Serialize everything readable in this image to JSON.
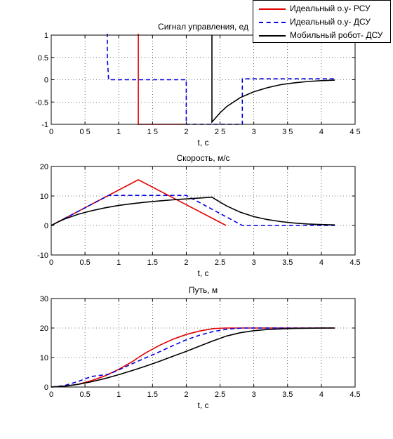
{
  "legend": {
    "items": [
      {
        "label": "Идеальный о.у- РСУ",
        "color": "#e00000",
        "style": "solid"
      },
      {
        "label": "Идеальный о.у- ДСУ",
        "color": "#0000e0",
        "style": "dashed"
      },
      {
        "label": "Мобильный робот- ДСУ",
        "color": "#000000",
        "style": "solid"
      }
    ]
  },
  "chart_data": [
    {
      "type": "line",
      "title": "Сигнал управления, ед",
      "xlabel": "t, c",
      "ylabel": "",
      "xlim": [
        0,
        4.5
      ],
      "ylim": [
        -1,
        1
      ],
      "xticks": [
        0,
        0.5,
        1,
        1.5,
        2,
        2.5,
        3,
        3.5,
        4,
        4.5
      ],
      "xtick_labels": [
        "0",
        "0 5",
        "1",
        "1 5",
        "2",
        "2 5",
        "3",
        "3 5",
        "4",
        "4 5"
      ],
      "yticks": [
        -1,
        -0.5,
        0,
        0.5,
        1
      ],
      "ytick_labels": [
        "-1",
        "-0.5",
        "0",
        "0.5",
        "1"
      ],
      "grid": true,
      "series": [
        {
          "name": "Идеальный о.у- РСУ",
          "color": "#e00000",
          "dash": "",
          "x": [
            1.29,
            1.29,
            2.0,
            2.0
          ],
          "y": [
            1.05,
            -1,
            -1,
            -1
          ]
        },
        {
          "name": "Идеальный о.у- ДСУ",
          "color": "#0000e0",
          "dash": "6,4",
          "x": [
            0.83,
            0.83,
            0.85,
            2.0,
            2.0,
            2.83,
            2.83,
            4.2
          ],
          "y": [
            1.05,
            0.5,
            0,
            0,
            -1,
            -1,
            0.02,
            0.02
          ]
        },
        {
          "name": "Мобильный робот- ДСУ",
          "color": "#000000",
          "dash": "",
          "x": [
            2.38,
            2.38,
            2.42,
            2.5,
            2.6,
            2.8,
            3.0,
            3.2,
            3.4,
            3.6,
            3.8,
            4.0,
            4.2
          ],
          "y": [
            1.0,
            -0.95,
            -0.88,
            -0.74,
            -0.6,
            -0.4,
            -0.27,
            -0.18,
            -0.11,
            -0.07,
            -0.04,
            -0.02,
            -0.01
          ]
        }
      ]
    },
    {
      "type": "line",
      "title": "Скорость, м/с",
      "xlabel": "t, c",
      "ylabel": "",
      "xlim": [
        0,
        4.5
      ],
      "ylim": [
        -10,
        20
      ],
      "xticks": [
        0,
        0.5,
        1,
        1.5,
        2,
        2.5,
        3,
        3.5,
        4,
        4.5
      ],
      "xtick_labels": [
        "0",
        "0.5",
        "1",
        "1.5",
        "2",
        "2.5",
        "3",
        "3.5",
        "4",
        "4.5"
      ],
      "yticks": [
        -10,
        0,
        10,
        20
      ],
      "ytick_labels": [
        "-10",
        "0",
        "10",
        "20"
      ],
      "grid": true,
      "series": [
        {
          "name": "Идеальный о.у- РСУ",
          "color": "#e00000",
          "dash": "",
          "x": [
            0,
            1.29,
            2.59
          ],
          "y": [
            0,
            15.5,
            0
          ]
        },
        {
          "name": "Идеальный о.у- ДСУ",
          "color": "#0000e0",
          "dash": "6,4",
          "x": [
            0,
            0.85,
            2.0,
            2.83,
            4.2
          ],
          "y": [
            0,
            10.2,
            10.2,
            0,
            0
          ]
        },
        {
          "name": "Мобильный робот- ДСУ",
          "color": "#000000",
          "dash": "",
          "x": [
            0,
            0.1,
            0.2,
            0.4,
            0.6,
            0.8,
            1.0,
            1.2,
            1.4,
            1.6,
            1.8,
            2.0,
            2.2,
            2.38,
            2.5,
            2.6,
            2.8,
            3.0,
            3.2,
            3.4,
            3.6,
            3.8,
            4.0,
            4.2
          ],
          "y": [
            0,
            1.2,
            2.2,
            3.8,
            5.0,
            6.0,
            6.8,
            7.4,
            7.9,
            8.3,
            8.7,
            9.0,
            9.3,
            9.6,
            7.9,
            6.6,
            4.5,
            3.0,
            2.0,
            1.3,
            0.8,
            0.5,
            0.3,
            0.2
          ]
        }
      ]
    },
    {
      "type": "line",
      "title": "Путь, м",
      "xlabel": "t, c",
      "ylabel": "",
      "xlim": [
        0,
        4.5
      ],
      "ylim": [
        0,
        30
      ],
      "xticks": [
        0,
        0.5,
        1,
        1.5,
        2,
        2.5,
        3,
        3.5,
        4,
        4.5
      ],
      "xtick_labels": [
        "0",
        "0.5",
        "1",
        "1.5",
        "2",
        "2.5",
        "3",
        "3.5",
        "4",
        "4.5"
      ],
      "yticks": [
        0,
        10,
        20,
        30
      ],
      "ytick_labels": [
        "0",
        "10",
        "20",
        "30"
      ],
      "grid": true,
      "series": [
        {
          "name": "Идеальный о.у- РСУ",
          "color": "#e00000",
          "dash": "",
          "x": [
            0,
            0.2,
            0.4,
            0.6,
            0.8,
            1.0,
            1.2,
            1.29,
            1.4,
            1.6,
            1.8,
            2.0,
            2.2,
            2.4,
            2.59,
            4.2
          ],
          "y": [
            0,
            0.24,
            0.96,
            2.2,
            3.8,
            6.0,
            8.6,
            10.0,
            11.6,
            14.1,
            16.2,
            17.8,
            19.0,
            19.8,
            20.0,
            20.0
          ]
        },
        {
          "name": "Идеальный о.у- ДСУ",
          "color": "#0000e0",
          "dash": "6,4",
          "x": [
            0,
            0.2,
            0.4,
            0.6,
            0.85,
            1.0,
            1.2,
            1.4,
            1.6,
            1.8,
            2.0,
            2.2,
            2.4,
            2.6,
            2.83,
            4.2
          ],
          "y": [
            0,
            0.5,
            1.9,
            3.6,
            4.3,
            5.8,
            7.9,
            9.9,
            11.9,
            14.0,
            16.0,
            17.6,
            18.8,
            19.6,
            20.0,
            20.0
          ]
        },
        {
          "name": "Мобильный робот- ДСУ",
          "color": "#000000",
          "dash": "",
          "x": [
            0,
            0.2,
            0.4,
            0.6,
            0.8,
            1.0,
            1.2,
            1.4,
            1.6,
            1.8,
            2.0,
            2.2,
            2.38,
            2.6,
            2.8,
            3.0,
            3.2,
            3.4,
            3.6,
            3.8,
            4.0,
            4.2
          ],
          "y": [
            0,
            0.3,
            0.9,
            1.8,
            2.9,
            4.2,
            5.6,
            7.1,
            8.7,
            10.4,
            12.1,
            13.9,
            15.5,
            17.3,
            18.4,
            19.1,
            19.5,
            19.7,
            19.85,
            19.93,
            19.97,
            20.0
          ]
        }
      ]
    }
  ]
}
